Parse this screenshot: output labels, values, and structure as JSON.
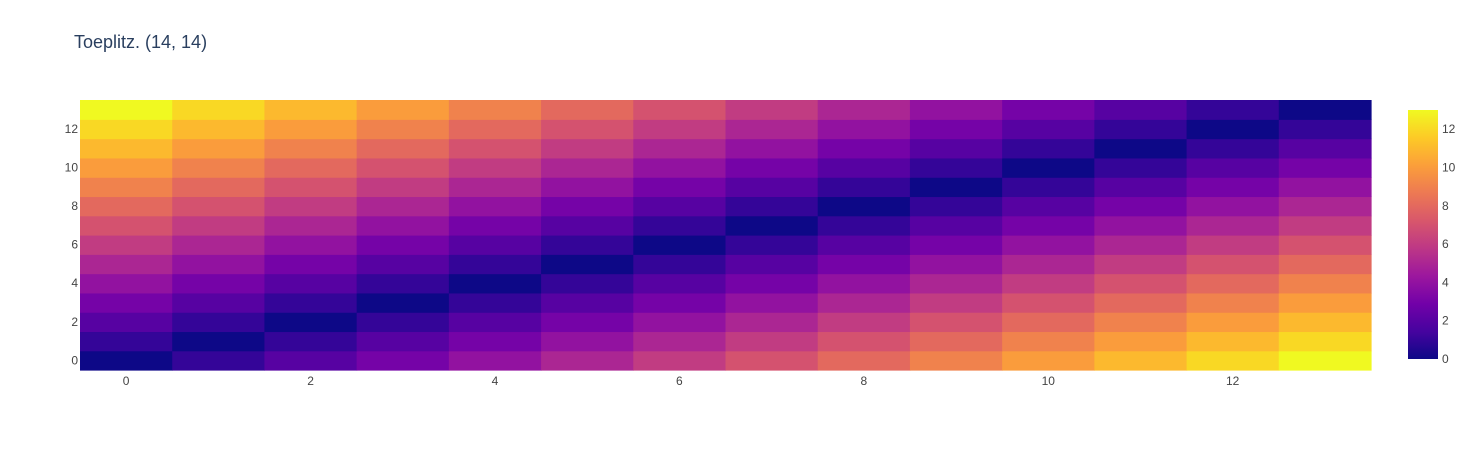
{
  "chart_data": {
    "type": "heatmap",
    "title": "Toeplitz. (14, 14)",
    "xlabel": "",
    "ylabel": "",
    "x": [
      0,
      1,
      2,
      3,
      4,
      5,
      6,
      7,
      8,
      9,
      10,
      11,
      12,
      13
    ],
    "y": [
      0,
      1,
      2,
      3,
      4,
      5,
      6,
      7,
      8,
      9,
      10,
      11,
      12,
      13
    ],
    "x_ticks": [
      0,
      2,
      4,
      6,
      8,
      10,
      12
    ],
    "y_ticks": [
      0,
      2,
      4,
      6,
      8,
      10,
      12
    ],
    "z": [
      [
        0,
        1,
        2,
        3,
        4,
        5,
        6,
        7,
        8,
        9,
        10,
        11,
        12,
        13
      ],
      [
        1,
        0,
        1,
        2,
        3,
        4,
        5,
        6,
        7,
        8,
        9,
        10,
        11,
        12
      ],
      [
        2,
        1,
        0,
        1,
        2,
        3,
        4,
        5,
        6,
        7,
        8,
        9,
        10,
        11
      ],
      [
        3,
        2,
        1,
        0,
        1,
        2,
        3,
        4,
        5,
        6,
        7,
        8,
        9,
        10
      ],
      [
        4,
        3,
        2,
        1,
        0,
        1,
        2,
        3,
        4,
        5,
        6,
        7,
        8,
        9
      ],
      [
        5,
        4,
        3,
        2,
        1,
        0,
        1,
        2,
        3,
        4,
        5,
        6,
        7,
        8
      ],
      [
        6,
        5,
        4,
        3,
        2,
        1,
        0,
        1,
        2,
        3,
        4,
        5,
        6,
        7
      ],
      [
        7,
        6,
        5,
        4,
        3,
        2,
        1,
        0,
        1,
        2,
        3,
        4,
        5,
        6
      ],
      [
        8,
        7,
        6,
        5,
        4,
        3,
        2,
        1,
        0,
        1,
        2,
        3,
        4,
        5
      ],
      [
        9,
        8,
        7,
        6,
        5,
        4,
        3,
        2,
        1,
        0,
        1,
        2,
        3,
        4
      ],
      [
        10,
        9,
        8,
        7,
        6,
        5,
        4,
        3,
        2,
        1,
        0,
        1,
        2,
        3
      ],
      [
        11,
        10,
        9,
        8,
        7,
        6,
        5,
        4,
        3,
        2,
        1,
        0,
        1,
        2
      ],
      [
        12,
        11,
        10,
        9,
        8,
        7,
        6,
        5,
        4,
        3,
        2,
        1,
        0,
        1
      ],
      [
        13,
        12,
        11,
        10,
        9,
        8,
        7,
        6,
        5,
        4,
        3,
        2,
        1,
        0
      ]
    ],
    "zlim": [
      0,
      13
    ],
    "colorbar_ticks": [
      0,
      2,
      4,
      6,
      8,
      10,
      12
    ],
    "colorscale": [
      "#0d0887",
      "#46039f",
      "#7201a8",
      "#9c179e",
      "#bd3786",
      "#d8576b",
      "#ed7953",
      "#fb9f3a",
      "#fdca26",
      "#f0f921"
    ],
    "tick_color": "#444444",
    "title_color": "#2a3f5f",
    "grid": false,
    "legend": "colorbar-right"
  }
}
